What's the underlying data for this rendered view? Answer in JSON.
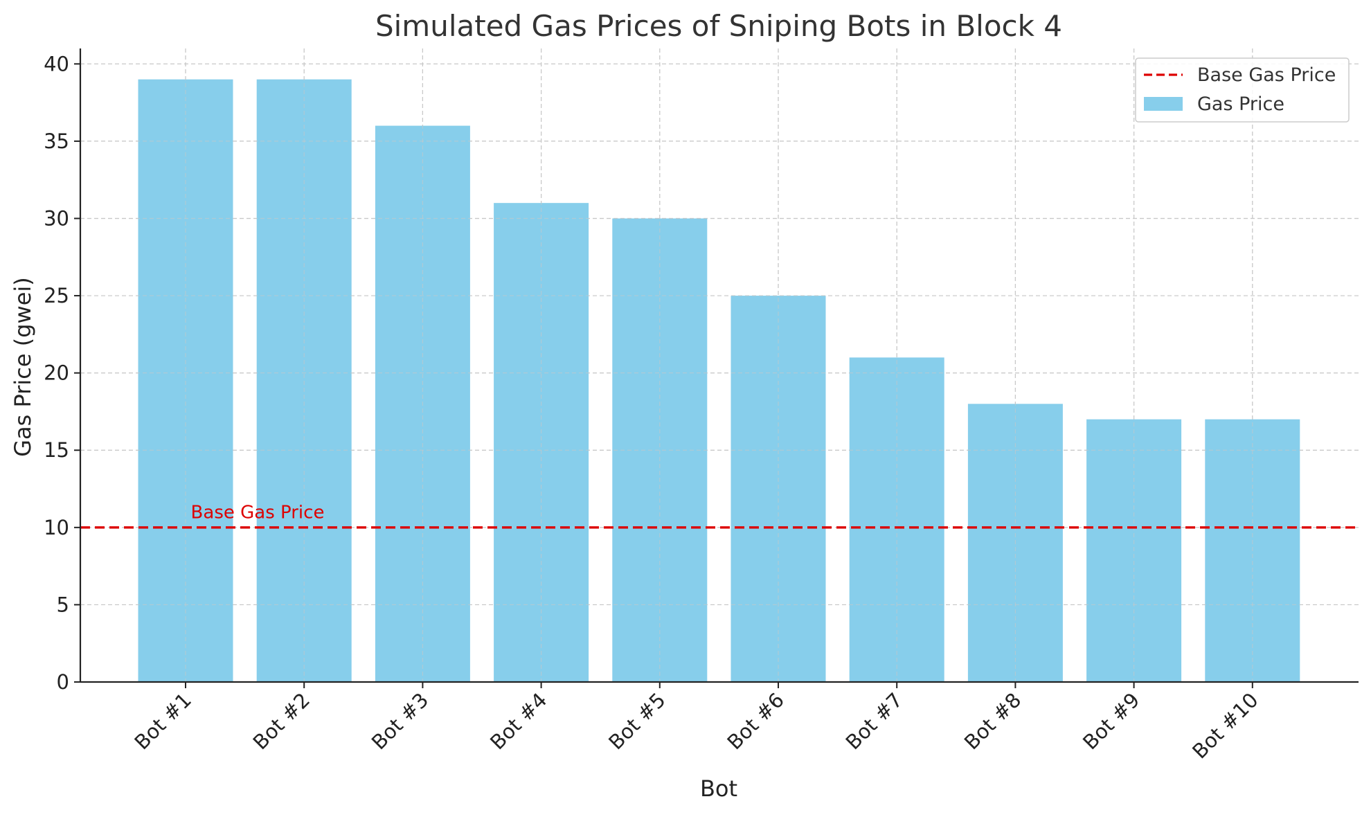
{
  "chart_data": {
    "type": "bar",
    "title": "Simulated Gas Prices of Sniping Bots in Block 4",
    "xlabel": "Bot",
    "ylabel": "Gas Price (gwei)",
    "categories": [
      "Bot #1",
      "Bot #2",
      "Bot #3",
      "Bot #4",
      "Bot #5",
      "Bot #6",
      "Bot #7",
      "Bot #8",
      "Bot #9",
      "Bot #10"
    ],
    "series": [
      {
        "name": "Gas Price",
        "values": [
          39,
          39,
          36,
          31,
          30,
          25,
          21,
          18,
          17,
          17
        ],
        "color": "#87CEEB"
      }
    ],
    "reference_line": {
      "name": "Base Gas Price",
      "value": 10,
      "color": "#dd0000",
      "style": "dashed"
    },
    "annotation": {
      "text": "Base Gas Price",
      "x_category": "Bot #1",
      "y": 11,
      "color": "#dd0000"
    },
    "ylim": [
      0,
      41
    ],
    "yticks": [
      0,
      5,
      10,
      15,
      20,
      25,
      30,
      35,
      40
    ],
    "grid": true,
    "legend": {
      "placement": "top-right",
      "entries": [
        "Base Gas Price",
        "Gas Price"
      ]
    }
  }
}
